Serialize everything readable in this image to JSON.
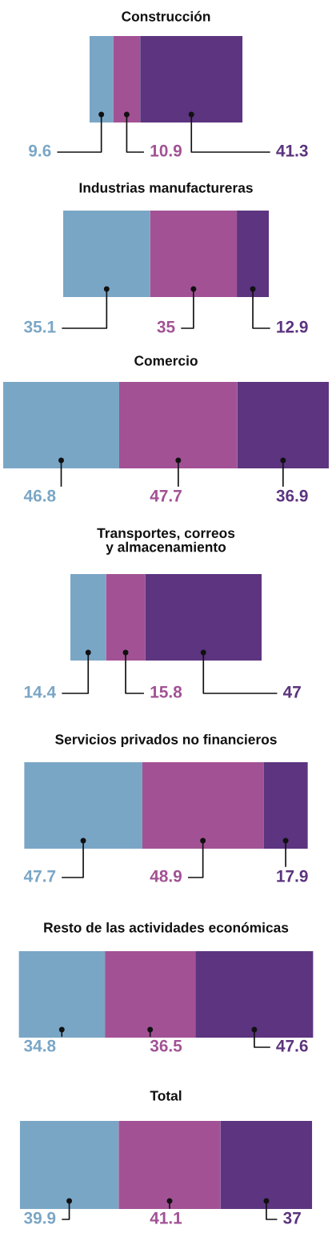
{
  "chart_data": [
    {
      "type": "bar",
      "orientation": "horizontal",
      "stacked": true,
      "title": "Construcción",
      "categories": [
        null
      ],
      "tick_labels": false,
      "data_labels": true,
      "series": [
        {
          "color": "#7aa6c6",
          "values": [
            9.6
          ]
        },
        {
          "color": "#a25294",
          "values": [
            10.9
          ]
        },
        {
          "color": "#5c347f",
          "values": [
            41.3
          ]
        }
      ]
    },
    {
      "type": "bar",
      "orientation": "horizontal",
      "stacked": true,
      "title": "Industrias manufactureras",
      "categories": [
        null
      ],
      "tick_labels": false,
      "data_labels": true,
      "series": [
        {
          "color": "#7aa6c6",
          "values": [
            35.1
          ]
        },
        {
          "color": "#a25294",
          "values": [
            35
          ]
        },
        {
          "color": "#5c347f",
          "values": [
            12.9
          ]
        }
      ]
    },
    {
      "type": "bar",
      "orientation": "horizontal",
      "stacked": true,
      "title": "Comercio",
      "categories": [
        null
      ],
      "tick_labels": false,
      "data_labels": true,
      "series": [
        {
          "color": "#7aa6c6",
          "values": [
            46.8
          ]
        },
        {
          "color": "#a25294",
          "values": [
            47.7
          ]
        },
        {
          "color": "#5c347f",
          "values": [
            36.9
          ]
        }
      ]
    },
    {
      "type": "bar",
      "orientation": "horizontal",
      "stacked": true,
      "title": "Transportes, correos\ny almacenamiento",
      "categories": [
        null
      ],
      "tick_labels": false,
      "data_labels": true,
      "series": [
        {
          "color": "#7aa6c6",
          "values": [
            14.4
          ]
        },
        {
          "color": "#a25294",
          "values": [
            15.8
          ]
        },
        {
          "color": "#5c347f",
          "values": [
            47
          ]
        }
      ]
    },
    {
      "type": "bar",
      "orientation": "horizontal",
      "stacked": true,
      "title": "Servicios privados no financieros",
      "categories": [
        null
      ],
      "tick_labels": false,
      "data_labels": true,
      "series": [
        {
          "color": "#7aa6c6",
          "values": [
            47.7
          ]
        },
        {
          "color": "#a25294",
          "values": [
            48.9
          ]
        },
        {
          "color": "#5c347f",
          "values": [
            17.9
          ]
        }
      ]
    },
    {
      "type": "bar",
      "orientation": "horizontal",
      "stacked": true,
      "title": "Resto de las actividades económicas",
      "categories": [
        null
      ],
      "tick_labels": false,
      "data_labels": true,
      "series": [
        {
          "color": "#7aa6c6",
          "values": [
            34.8
          ]
        },
        {
          "color": "#a25294",
          "values": [
            36.5
          ]
        },
        {
          "color": "#5c347f",
          "values": [
            47.6
          ]
        }
      ]
    },
    {
      "type": "bar",
      "orientation": "horizontal",
      "stacked": true,
      "title": "Total",
      "categories": [
        null
      ],
      "tick_labels": false,
      "data_labels": true,
      "series": [
        {
          "color": "#7aa6c6",
          "values": [
            39.9
          ]
        },
        {
          "color": "#a25294",
          "values": [
            41.1
          ]
        },
        {
          "color": "#5c347f",
          "values": [
            37
          ]
        }
      ]
    }
  ]
}
